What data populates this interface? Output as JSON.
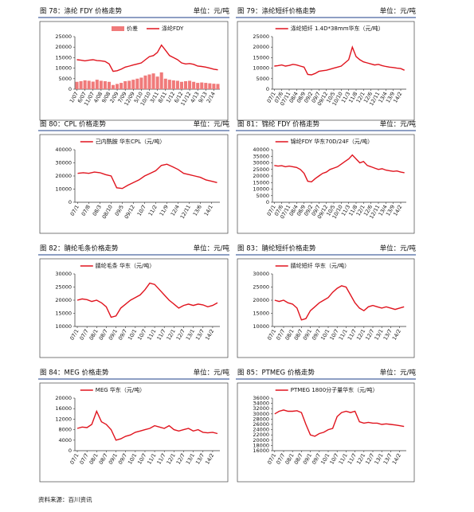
{
  "chart_data": [
    {
      "type": "combo",
      "title": "图 78：涤纶 FDY 价格走势",
      "unit": "单位：元/吨",
      "categories": [
        "1/07",
        null,
        "6/07",
        null,
        "11/07",
        null,
        "4/08",
        null,
        "9/08",
        null,
        "2/09",
        null,
        "7/09",
        null,
        "12/09",
        null,
        "5/10",
        null,
        "10/10",
        null,
        "3/11",
        null,
        "8/11",
        null,
        "1/12",
        null,
        "6/12",
        null,
        "11/12",
        null,
        "4/13",
        null,
        "9/13",
        null,
        "2/14",
        null
      ],
      "series": [
        {
          "name": "价差",
          "type": "bar",
          "color": "#f07a7a",
          "values": [
            3500,
            3800,
            4200,
            4000,
            3600,
            4500,
            4000,
            3800,
            3500,
            2000,
            2500,
            3000,
            3800,
            4000,
            4500,
            5000,
            5500,
            6500,
            7000,
            7500,
            6000,
            8000,
            5000,
            4500,
            4200,
            4000,
            3500,
            3800,
            4000,
            3500,
            3000,
            3200,
            3000,
            2800,
            2600,
            2500
          ]
        },
        {
          "name": "涤纶FDY",
          "type": "line",
          "color": "#e0141e",
          "values": [
            14000,
            13800,
            13500,
            13800,
            14000,
            13600,
            13500,
            13200,
            12000,
            8500,
            8800,
            9500,
            10500,
            11000,
            11500,
            12000,
            12500,
            14000,
            15500,
            16000,
            17500,
            21000,
            18500,
            16000,
            15000,
            14000,
            12500,
            12000,
            12200,
            11800,
            11000,
            10800,
            10500,
            10000,
            9500,
            9200
          ]
        }
      ],
      "ylim": [
        0,
        25000
      ],
      "yticks": [
        0,
        5000,
        10000,
        15000,
        20000,
        25000
      ]
    },
    {
      "type": "line",
      "title": "图 79：涤纶短纤价格走势",
      "unit": "单位：元/吨",
      "categories": [
        "07/1",
        null,
        "07/6",
        null,
        "07/11",
        null,
        "08/4",
        null,
        "08/9",
        null,
        "09/2",
        null,
        "09/7",
        null,
        "09/12",
        null,
        "10/5",
        null,
        "10/10",
        null,
        "11/3",
        null,
        "11/8",
        null,
        "12/1",
        null,
        "12/6",
        null,
        "12/11",
        null,
        "13/4",
        null,
        "13/9",
        null,
        "14/2",
        null
      ],
      "series": [
        {
          "name": "涤纶短纤 1.4D*38mm华东（元/吨）",
          "color": "#e0141e",
          "values": [
            11000,
            11200,
            11500,
            11000,
            11300,
            11800,
            11500,
            11000,
            10500,
            7000,
            6800,
            7500,
            8500,
            8800,
            9000,
            9500,
            10000,
            10500,
            11000,
            12500,
            14000,
            20000,
            15500,
            14000,
            13000,
            12500,
            12000,
            11500,
            11800,
            11200,
            10800,
            10500,
            10300,
            10000,
            9800,
            9000
          ]
        }
      ],
      "ylim": [
        0,
        25000
      ],
      "yticks": [
        0,
        5000,
        10000,
        15000,
        20000,
        25000
      ]
    },
    {
      "type": "line",
      "title": "图 80：CPL 价格走势",
      "unit": "单位：元/吨",
      "categories": [
        "07/1",
        null,
        "07/8",
        null,
        "08/3",
        null,
        "08/10",
        null,
        "09/5",
        null,
        "09/12",
        null,
        "10/7",
        null,
        "11/2",
        null,
        "11/9",
        null,
        "12/4",
        null,
        "12/11",
        null,
        "13/6",
        null,
        "14/1",
        null
      ],
      "series": [
        {
          "name": "己内酰胺 华东CPL（元/吨）",
          "color": "#e0141e",
          "values": [
            22000,
            22500,
            22000,
            23000,
            22500,
            21000,
            20000,
            11000,
            10500,
            13000,
            15000,
            17000,
            20000,
            22000,
            24000,
            28000,
            29000,
            27000,
            25000,
            22000,
            21000,
            20000,
            19000,
            17000,
            16000,
            15000
          ]
        }
      ],
      "ylim": [
        0,
        40000
      ],
      "yticks": [
        0,
        10000,
        20000,
        30000,
        40000
      ]
    },
    {
      "type": "line",
      "title": "图 81：锦纶 FDY 价格走势",
      "unit": "单位：元/吨",
      "categories": [
        "07/1",
        null,
        "07/6",
        null,
        "07/11",
        null,
        "08/4",
        null,
        "08/9",
        null,
        "09/2",
        null,
        "09/7",
        null,
        "09/12",
        null,
        "10/5",
        null,
        "10/10",
        null,
        "11/3",
        null,
        "11/8",
        null,
        "12/1",
        null,
        "12/6",
        null,
        "12/11",
        null,
        "13/4",
        null,
        "13/9",
        null,
        "14/2",
        null
      ],
      "series": [
        {
          "name": "锦纶FDY 华东70D/24F（元/吨）",
          "color": "#e0141e",
          "values": [
            28000,
            27500,
            27800,
            27000,
            27500,
            27000,
            26500,
            25000,
            22000,
            16000,
            15500,
            18000,
            20000,
            22000,
            23000,
            25000,
            26000,
            27000,
            29000,
            31000,
            33000,
            36000,
            33000,
            30000,
            31000,
            28000,
            27000,
            26000,
            25000,
            25500,
            24500,
            24000,
            23500,
            23800,
            23000,
            22500
          ]
        }
      ],
      "ylim": [
        0,
        40000
      ],
      "yticks": [
        0,
        5000,
        10000,
        15000,
        20000,
        25000,
        30000,
        35000,
        40000
      ]
    },
    {
      "type": "line",
      "title": "图 82：腈纶毛条价格走势",
      "unit": "单位：元/吨",
      "categories": [
        "07/1",
        null,
        "07/7",
        null,
        "08/1",
        null,
        "08/7",
        null,
        "09/1",
        null,
        "09/7",
        null,
        "10/1",
        null,
        "10/7",
        null,
        "11/1",
        null,
        "11/7",
        null,
        "12/1",
        null,
        "12/7",
        null,
        "13/1",
        null,
        "13/7",
        null,
        "14/2",
        null
      ],
      "series": [
        {
          "name": "腈纶毛条 华东（元/吨）",
          "color": "#e0141e",
          "values": [
            20000,
            20500,
            20200,
            19500,
            20000,
            19000,
            17500,
            13500,
            14000,
            17000,
            18500,
            20000,
            21000,
            22000,
            24000,
            26500,
            26000,
            24000,
            22000,
            20000,
            18500,
            17000,
            18000,
            18500,
            18000,
            18500,
            18200,
            17500,
            18000,
            19000
          ]
        }
      ],
      "ylim": [
        10000,
        30000
      ],
      "yticks": [
        10000,
        15000,
        20000,
        25000,
        30000
      ]
    },
    {
      "type": "line",
      "title": "图 83：腈纶短纤价格走势",
      "unit": "单位：元/吨",
      "categories": [
        "07/1",
        null,
        "07/7",
        null,
        "08/1",
        null,
        "08/7",
        null,
        "09/1",
        null,
        "09/7",
        null,
        "10/1",
        null,
        "10/7",
        null,
        "11/1",
        null,
        "11/7",
        null,
        "12/1",
        null,
        "12/7",
        null,
        "13/1",
        null,
        "13/7",
        null,
        "14/2",
        null
      ],
      "series": [
        {
          "name": "腈纶短纤 华东（元/吨）",
          "color": "#e0141e",
          "values": [
            20000,
            19500,
            20000,
            19000,
            18500,
            17000,
            12500,
            13000,
            16000,
            17500,
            19000,
            20000,
            21000,
            23000,
            24500,
            25500,
            25000,
            22000,
            19000,
            17000,
            16000,
            17500,
            18000,
            17500,
            17000,
            17500,
            17000,
            16500,
            17000,
            17500
          ]
        }
      ],
      "ylim": [
        10000,
        30000
      ],
      "yticks": [
        10000,
        15000,
        20000,
        25000,
        30000
      ]
    },
    {
      "type": "line",
      "title": "图 84：MEG 价格走势",
      "unit": "单位：元/吨",
      "categories": [
        "07/1",
        null,
        "07/7",
        null,
        "08/1",
        null,
        "08/7",
        null,
        "09/1",
        null,
        "09/7",
        null,
        "10/1",
        null,
        "10/7",
        null,
        "11/1",
        null,
        "11/7",
        null,
        "12/1",
        null,
        "12/7",
        null,
        "13/1",
        null,
        "13/7",
        null,
        "14/2",
        null
      ],
      "series": [
        {
          "name": "MEG 华东（元/吨）",
          "color": "#e0141e",
          "values": [
            8500,
            9000,
            8800,
            10000,
            15000,
            11000,
            10000,
            8000,
            4000,
            4500,
            5500,
            6000,
            7000,
            7500,
            8000,
            8500,
            9500,
            9000,
            8500,
            9500,
            8000,
            7500,
            8000,
            8500,
            7500,
            8000,
            7000,
            6800,
            7000,
            6500
          ]
        }
      ],
      "ylim": [
        0,
        20000
      ],
      "yticks": [
        0,
        4000,
        8000,
        12000,
        16000,
        20000
      ]
    },
    {
      "type": "line",
      "title": "图 85：PTMEG 价格走势",
      "unit": "单位：元/吨",
      "categories": [
        "07/1",
        null,
        "07/7",
        null,
        "08/1",
        null,
        "08/7",
        null,
        "09/1",
        null,
        "09/7",
        null,
        "10/1",
        null,
        "10/7",
        null,
        "11/1",
        null,
        "11/7",
        null,
        "12/1",
        null,
        "12/7",
        null,
        "13/1",
        null,
        "13/7",
        null,
        "14/2",
        null
      ],
      "series": [
        {
          "name": "PTMEG 1800分子量华东（元/吨）",
          "color": "#e0141e",
          "values": [
            30000,
            31000,
            31500,
            31000,
            31000,
            31200,
            30500,
            26000,
            22000,
            21500,
            22500,
            23000,
            24000,
            24500,
            29000,
            30500,
            31000,
            30500,
            31000,
            27000,
            26500,
            26800,
            26500,
            26500,
            26000,
            26200,
            26000,
            25800,
            25500,
            25200
          ]
        }
      ],
      "ylim": [
        16000,
        36000
      ],
      "yticks": [
        16000,
        18000,
        20000,
        22000,
        24000,
        26000,
        28000,
        30000,
        32000,
        34000,
        36000
      ]
    }
  ],
  "footer": "资料来源：百川资讯"
}
